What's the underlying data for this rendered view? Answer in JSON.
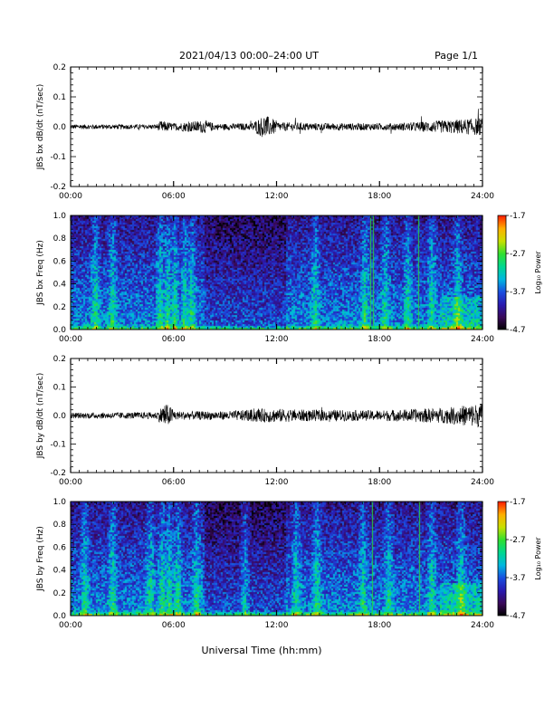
{
  "header": {
    "title": "2021/04/13  00:00–24:00 UT",
    "page": "Page 1/1"
  },
  "xaxis": {
    "label": "Universal Time (hh:mm)",
    "ticks": [
      "00:00",
      "06:00",
      "12:00",
      "18:00",
      "24:00"
    ]
  },
  "colors": {
    "trace": "#000000",
    "colormap": [
      "#000000",
      "#3a0a5a",
      "#2a1ab0",
      "#1a4ee0",
      "#00b8e0",
      "#00d890",
      "#30e030",
      "#c8e000",
      "#ffb000",
      "#ff2000"
    ]
  },
  "chart_data": [
    {
      "type": "line",
      "ylabel": "JBS bx dB/dt (nT/sec)",
      "ylim": [
        -0.2,
        0.2
      ],
      "yticks": [
        "0.2",
        "0.1",
        "0.0",
        "-0.1",
        "-0.2"
      ],
      "xlim_hours": [
        0,
        24
      ],
      "x_ticks_hours": [
        0,
        6,
        12,
        18,
        24
      ],
      "series": [
        {
          "amplitude_envelope": [
            {
              "x": 0,
              "y": 0.008
            },
            {
              "x": 5,
              "y": 0.008
            },
            {
              "x": 5.3,
              "y": 0.02
            },
            {
              "x": 6,
              "y": 0.012
            },
            {
              "x": 7.8,
              "y": 0.022
            },
            {
              "x": 8.5,
              "y": 0.01
            },
            {
              "x": 10.5,
              "y": 0.012
            },
            {
              "x": 11.3,
              "y": 0.04
            },
            {
              "x": 12.2,
              "y": 0.015
            },
            {
              "x": 15,
              "y": 0.012
            },
            {
              "x": 19,
              "y": 0.012
            },
            {
              "x": 22,
              "y": 0.022
            },
            {
              "x": 24,
              "y": 0.03
            }
          ]
        }
      ]
    },
    {
      "type": "heatmap",
      "ylabel": "JBS bx Freq (Hz)",
      "ylim": [
        0.0,
        1.0
      ],
      "yticks": [
        "1.0",
        "0.8",
        "0.6",
        "0.4",
        "0.2",
        "0.0"
      ],
      "xlim_hours": [
        0,
        24
      ],
      "x_ticks_hours": [
        0,
        6,
        12,
        18,
        24
      ],
      "colorbar": {
        "label": "Log₁₀ Power",
        "ticks": [
          "-1.7",
          "-2.7",
          "-3.7",
          "-4.7"
        ],
        "range": [
          -4.7,
          -1.7
        ]
      },
      "bright_bands_hours": [
        1.4,
        2.4,
        5.2,
        5.6,
        6.0,
        6.6,
        7.0,
        14.2,
        17.1,
        18.3,
        19.6,
        21.0,
        22.5
      ],
      "line_artifacts_hours": [
        17.45,
        17.6,
        20.25
      ]
    },
    {
      "type": "line",
      "ylabel": "JBS by dB/dt (nT/sec)",
      "ylim": [
        -0.2,
        0.2
      ],
      "yticks": [
        "0.2",
        "0.1",
        "0.0",
        "-0.1",
        "-0.2"
      ],
      "xlim_hours": [
        0,
        24
      ],
      "x_ticks_hours": [
        0,
        6,
        12,
        18,
        24
      ],
      "series": [
        {
          "amplitude_envelope": [
            {
              "x": 0,
              "y": 0.01
            },
            {
              "x": 5,
              "y": 0.012
            },
            {
              "x": 5.5,
              "y": 0.045
            },
            {
              "x": 6.2,
              "y": 0.015
            },
            {
              "x": 9,
              "y": 0.015
            },
            {
              "x": 11.5,
              "y": 0.025
            },
            {
              "x": 14,
              "y": 0.02
            },
            {
              "x": 18,
              "y": 0.018
            },
            {
              "x": 22,
              "y": 0.028
            },
            {
              "x": 24,
              "y": 0.045
            }
          ]
        }
      ]
    },
    {
      "type": "heatmap",
      "ylabel": "JBS by Freq (Hz)",
      "ylim": [
        0.0,
        1.0
      ],
      "yticks": [
        "1.0",
        "0.8",
        "0.6",
        "0.4",
        "0.2",
        "0.0"
      ],
      "xlim_hours": [
        0,
        24
      ],
      "x_ticks_hours": [
        0,
        6,
        12,
        18,
        24
      ],
      "colorbar": {
        "label": "Log₁₀ Power",
        "ticks": [
          "-1.7",
          "-2.7",
          "-3.7",
          "-4.7"
        ],
        "range": [
          -4.7,
          -1.7
        ]
      },
      "bright_bands_hours": [
        0.8,
        2.4,
        4.6,
        5.3,
        5.7,
        6.2,
        7.3,
        10.1,
        13.1,
        14.3,
        17.0,
        18.5,
        21.0,
        22.7
      ],
      "line_artifacts_hours": [
        17.55,
        20.3
      ]
    }
  ]
}
